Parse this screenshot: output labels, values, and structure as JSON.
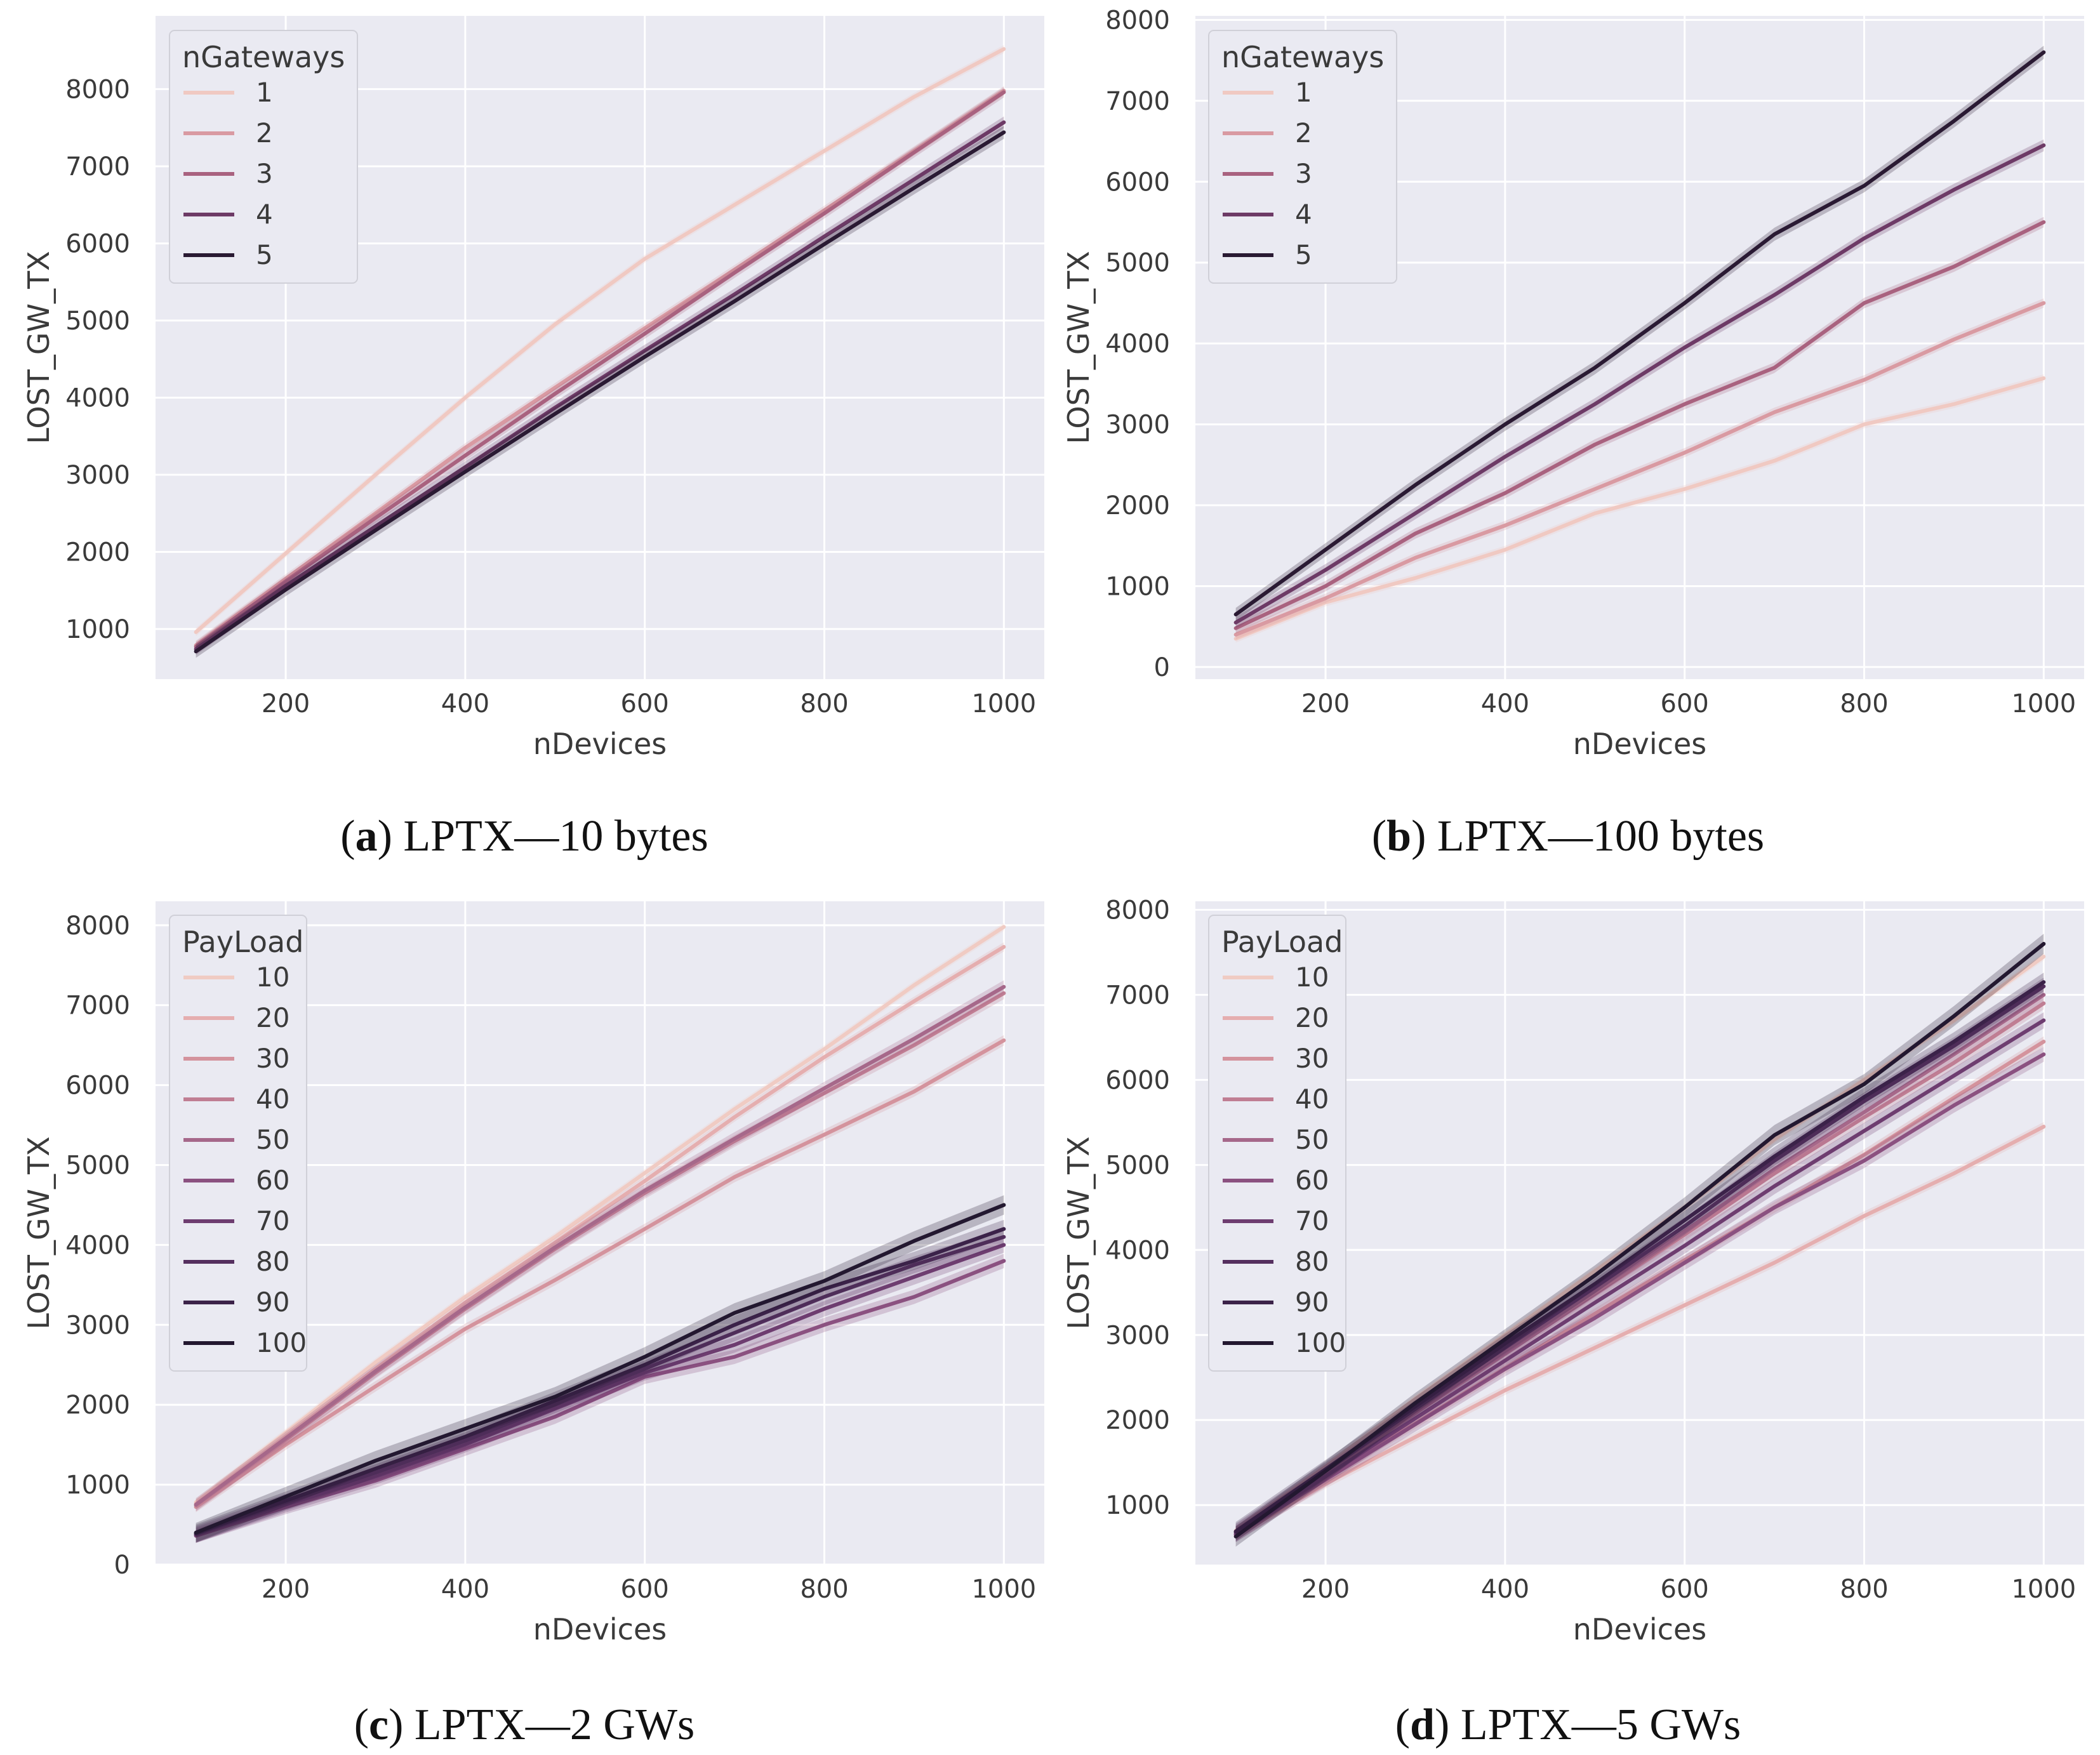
{
  "chart_data": [
    {
      "id": "a",
      "type": "line",
      "caption_letter": "a",
      "caption_text": "LPTX—10 bytes",
      "xlabel": "nDevices",
      "ylabel": "LOST_GW_TX",
      "xlim": [
        55,
        1045
      ],
      "ylim": [
        350,
        8950
      ],
      "xticks": [
        200,
        400,
        600,
        800,
        1000
      ],
      "yticks": [
        1000,
        2000,
        3000,
        4000,
        5000,
        6000,
        7000,
        8000
      ],
      "legend_title": "nGateways",
      "legend_position": "top-left",
      "x": [
        100,
        200,
        300,
        400,
        500,
        600,
        700,
        800,
        900,
        1000
      ],
      "series": [
        {
          "name": "1",
          "color": "#f0c9c2",
          "values": [
            960,
            1980,
            3000,
            4000,
            4950,
            5800,
            6500,
            7200,
            7900,
            8520
          ]
        },
        {
          "name": "2",
          "color": "#d99aa2",
          "values": [
            790,
            1650,
            2500,
            3350,
            4130,
            4900,
            5660,
            6430,
            7200,
            7980
          ]
        },
        {
          "name": "3",
          "color": "#a9627f",
          "values": [
            770,
            1620,
            2440,
            3250,
            4050,
            4830,
            5620,
            6390,
            7180,
            7960
          ]
        },
        {
          "name": "4",
          "color": "#6d3a66",
          "values": [
            740,
            1560,
            2330,
            3100,
            3870,
            4610,
            5340,
            6090,
            6830,
            7570
          ]
        },
        {
          "name": "5",
          "color": "#2a1a33",
          "values": [
            710,
            1510,
            2280,
            3040,
            3790,
            4530,
            5250,
            5990,
            6720,
            7440
          ]
        }
      ]
    },
    {
      "id": "b",
      "type": "line",
      "caption_letter": "b",
      "caption_text": "LPTX—100 bytes",
      "xlabel": "nDevices",
      "ylabel": "LOST_GW_TX",
      "xlim": [
        55,
        1045
      ],
      "ylim": [
        -150,
        8050
      ],
      "xticks": [
        200,
        400,
        600,
        800,
        1000
      ],
      "yticks": [
        0,
        1000,
        2000,
        3000,
        4000,
        5000,
        6000,
        7000,
        8000
      ],
      "legend_title": "nGateways",
      "legend_position": "top-left",
      "x": [
        100,
        200,
        300,
        400,
        500,
        600,
        700,
        800,
        900,
        1000
      ],
      "series": [
        {
          "name": "1",
          "color": "#f0c9c2",
          "values": [
            350,
            800,
            1100,
            1450,
            1900,
            2200,
            2550,
            3000,
            3250,
            3570
          ]
        },
        {
          "name": "2",
          "color": "#d99aa2",
          "values": [
            400,
            850,
            1350,
            1750,
            2200,
            2650,
            3150,
            3550,
            4050,
            4500
          ]
        },
        {
          "name": "3",
          "color": "#a9627f",
          "values": [
            480,
            1000,
            1650,
            2150,
            2750,
            3250,
            3700,
            4500,
            4950,
            5500
          ]
        },
        {
          "name": "4",
          "color": "#6d3a66",
          "values": [
            550,
            1200,
            1900,
            2600,
            3250,
            3950,
            4600,
            5300,
            5900,
            6450
          ]
        },
        {
          "name": "5",
          "color": "#2a1a33",
          "values": [
            650,
            1450,
            2250,
            3000,
            3700,
            4500,
            5350,
            5950,
            6750,
            7600
          ]
        }
      ]
    },
    {
      "id": "c",
      "type": "line",
      "caption_letter": "c",
      "caption_text": "LPTX—2 GWs",
      "xlabel": "nDevices",
      "ylabel": "LOST_GW_TX",
      "xlim": [
        55,
        1045
      ],
      "ylim": [
        0,
        8300
      ],
      "xticks": [
        200,
        400,
        600,
        800,
        1000
      ],
      "yticks": [
        0,
        1000,
        2000,
        3000,
        4000,
        5000,
        6000,
        7000,
        8000
      ],
      "legend_title": "PayLoad",
      "legend_position": "top-left",
      "x": [
        100,
        200,
        300,
        400,
        500,
        600,
        700,
        800,
        900,
        1000
      ],
      "series": [
        {
          "name": "10",
          "color": "#f0cbc3",
          "values": [
            780,
            1650,
            2530,
            3350,
            4100,
            4900,
            5700,
            6450,
            7250,
            7980
          ]
        },
        {
          "name": "20",
          "color": "#e5aeaf",
          "values": [
            760,
            1600,
            2450,
            3280,
            4030,
            4800,
            5600,
            6350,
            7050,
            7730
          ]
        },
        {
          "name": "30",
          "color": "#d4939d",
          "values": [
            720,
            1500,
            2230,
            2950,
            3560,
            4200,
            4850,
            5380,
            5920,
            6560
          ]
        },
        {
          "name": "40",
          "color": "#c07e93",
          "values": [
            740,
            1560,
            2400,
            3200,
            3950,
            4650,
            5300,
            5900,
            6500,
            7150
          ]
        },
        {
          "name": "50",
          "color": "#a6688a",
          "values": [
            750,
            1580,
            2420,
            3220,
            3970,
            4680,
            5330,
            5960,
            6580,
            7230
          ]
        },
        {
          "name": "60",
          "color": "#8b5180",
          "values": [
            360,
            720,
            1050,
            1450,
            1850,
            2350,
            2600,
            3000,
            3350,
            3800
          ]
        },
        {
          "name": "70",
          "color": "#6e3d70",
          "values": [
            370,
            750,
            1100,
            1500,
            1950,
            2400,
            2750,
            3200,
            3600,
            4000
          ]
        },
        {
          "name": "80",
          "color": "#55305f",
          "values": [
            380,
            780,
            1150,
            1550,
            2000,
            2450,
            2900,
            3350,
            3750,
            4100
          ]
        },
        {
          "name": "90",
          "color": "#3b2249",
          "values": [
            390,
            800,
            1200,
            1600,
            2050,
            2500,
            3000,
            3450,
            3800,
            4200
          ]
        },
        {
          "name": "100",
          "color": "#231830",
          "values": [
            400,
            850,
            1300,
            1700,
            2100,
            2600,
            3150,
            3550,
            4050,
            4500
          ]
        }
      ]
    },
    {
      "id": "d",
      "type": "line",
      "caption_letter": "d",
      "caption_text": "LPTX—5 GWs",
      "xlabel": "nDevices",
      "ylabel": "LOST_GW_TX",
      "xlim": [
        55,
        1045
      ],
      "ylim": [
        300,
        8100
      ],
      "xticks": [
        200,
        400,
        600,
        800,
        1000
      ],
      "yticks": [
        1000,
        2000,
        3000,
        4000,
        5000,
        6000,
        7000,
        8000
      ],
      "legend_title": "PayLoad",
      "legend_position": "top-left",
      "x": [
        100,
        200,
        300,
        400,
        500,
        600,
        700,
        800,
        900,
        1000
      ],
      "series": [
        {
          "name": "10",
          "color": "#f0cbc3",
          "values": [
            700,
            1450,
            2250,
            3000,
            3750,
            4500,
            5300,
            6000,
            6700,
            7450
          ]
        },
        {
          "name": "20",
          "color": "#e5aeaf",
          "values": [
            640,
            1250,
            1800,
            2350,
            2850,
            3350,
            3850,
            4400,
            4900,
            5450
          ]
        },
        {
          "name": "30",
          "color": "#d4939d",
          "values": [
            660,
            1320,
            1960,
            2610,
            3250,
            3880,
            4500,
            5120,
            5790,
            6450
          ]
        },
        {
          "name": "40",
          "color": "#c07e93",
          "values": [
            680,
            1380,
            2080,
            2780,
            3480,
            4180,
            4900,
            5560,
            6200,
            6900
          ]
        },
        {
          "name": "50",
          "color": "#a6688a",
          "values": [
            690,
            1400,
            2100,
            2800,
            3520,
            4220,
            4950,
            5620,
            6300,
            7000
          ]
        },
        {
          "name": "60",
          "color": "#8b5180",
          "values": [
            650,
            1300,
            1950,
            2600,
            3200,
            3850,
            4500,
            5050,
            5700,
            6300
          ]
        },
        {
          "name": "70",
          "color": "#6e3d70",
          "values": [
            660,
            1340,
            2020,
            2700,
            3380,
            4050,
            4750,
            5400,
            6050,
            6700
          ]
        },
        {
          "name": "80",
          "color": "#55305f",
          "values": [
            680,
            1400,
            2130,
            2850,
            3560,
            4280,
            5050,
            5750,
            6400,
            7100
          ]
        },
        {
          "name": "90",
          "color": "#3b2249",
          "values": [
            690,
            1420,
            2160,
            2900,
            3600,
            4350,
            5100,
            5800,
            6450,
            7150
          ]
        },
        {
          "name": "100",
          "color": "#231830",
          "values": [
            630,
            1400,
            2200,
            2950,
            3700,
            4500,
            5350,
            5950,
            6750,
            7600
          ]
        }
      ]
    }
  ]
}
